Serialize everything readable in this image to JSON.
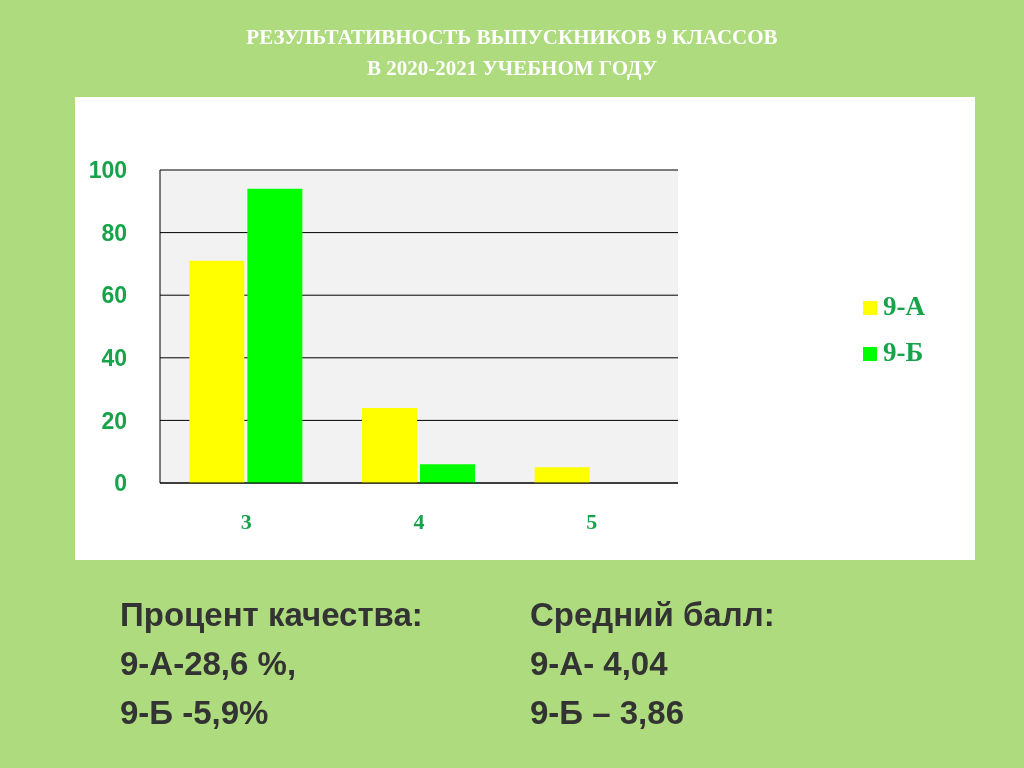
{
  "chart_data": {
    "type": "bar",
    "title": "РЕЗУЛЬТАТИВНОСТЬ ВЫПУСКНИКОВ 9 КЛАССОВ\nВ 2020-2021 УЧЕБНОМ ГОДУ",
    "categories": [
      "3",
      "4",
      "5"
    ],
    "series": [
      {
        "name": "9-А",
        "color": "#ffff00",
        "values": [
          71,
          24,
          5
        ]
      },
      {
        "name": "9-Б",
        "color": "#00ff00",
        "values": [
          94,
          6,
          0
        ]
      }
    ],
    "ylim": [
      0,
      100
    ],
    "yticks": [
      0,
      20,
      40,
      60,
      80,
      100
    ],
    "grid": "y",
    "legend": "right",
    "annotations": [
      "Процент качества:",
      "Средний балл:",
      "9-А-28,6 %,",
      "9-А- 4,04",
      "9-Б -5,9%",
      "9-Б – 3,86"
    ]
  }
}
